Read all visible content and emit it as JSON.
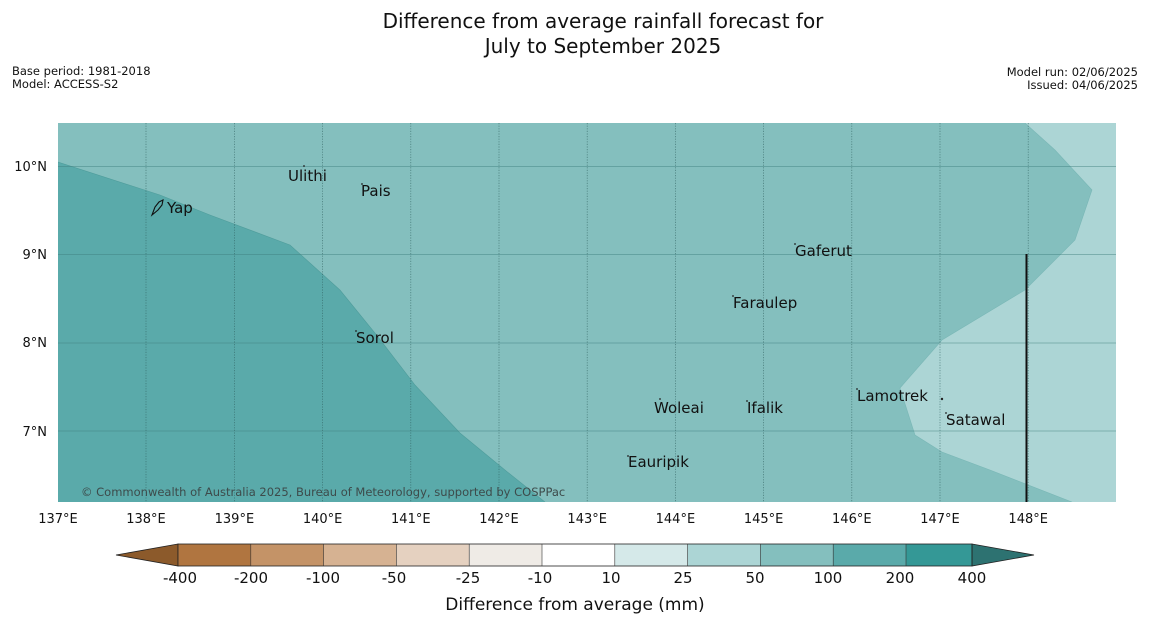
{
  "title": {
    "line1": "Difference from average rainfall forecast for",
    "line2": "July to September 2025"
  },
  "meta": {
    "base_period": "Base period: 1981-2018",
    "model": "Model: ACCESS-S2",
    "model_run": "Model run: 02/06/2025",
    "issued": "Issued: 04/06/2025"
  },
  "copyright": "© Commonwealth of Australia 2025, Bureau of Meteorology, supported by COSPPac",
  "map": {
    "lon_labels": [
      "137°E",
      "138°E",
      "139°E",
      "140°E",
      "141°E",
      "142°E",
      "143°E",
      "144°E",
      "145°E",
      "146°E",
      "147°E",
      "148°E"
    ],
    "lat_labels": [
      "10°N",
      "9°N",
      "8°N",
      "7°N"
    ],
    "places": [
      "Ulithi",
      "Pais",
      "Yap",
      "Gaferut",
      "Faraulep",
      "Sorol",
      "Lamotrek",
      "Woleai",
      "Ifalik",
      "Satawal",
      "Eauripik"
    ]
  },
  "colorbar": {
    "label": "Difference from average (mm)",
    "ticks": [
      "-400",
      "-200",
      "-100",
      "-50",
      "-25",
      "-10",
      "10",
      "25",
      "50",
      "100",
      "200",
      "400"
    ],
    "colors": {
      "lt_-400": "#8c5a2b",
      "-400_-200": "#b07540",
      "-200_-100": "#c49367",
      "-100_-50": "#d6b292",
      "-50_-25": "#e5d1c0",
      "-25_-10": "#efebe6",
      "-10_10": "#ffffff",
      "10_25": "#d5e9e9",
      "25_50": "#acd5d5",
      "50_100": "#84bfbe",
      "100_200": "#5aaaaa",
      "200_400": "#349896",
      "gt_400": "#2d7271"
    }
  }
}
